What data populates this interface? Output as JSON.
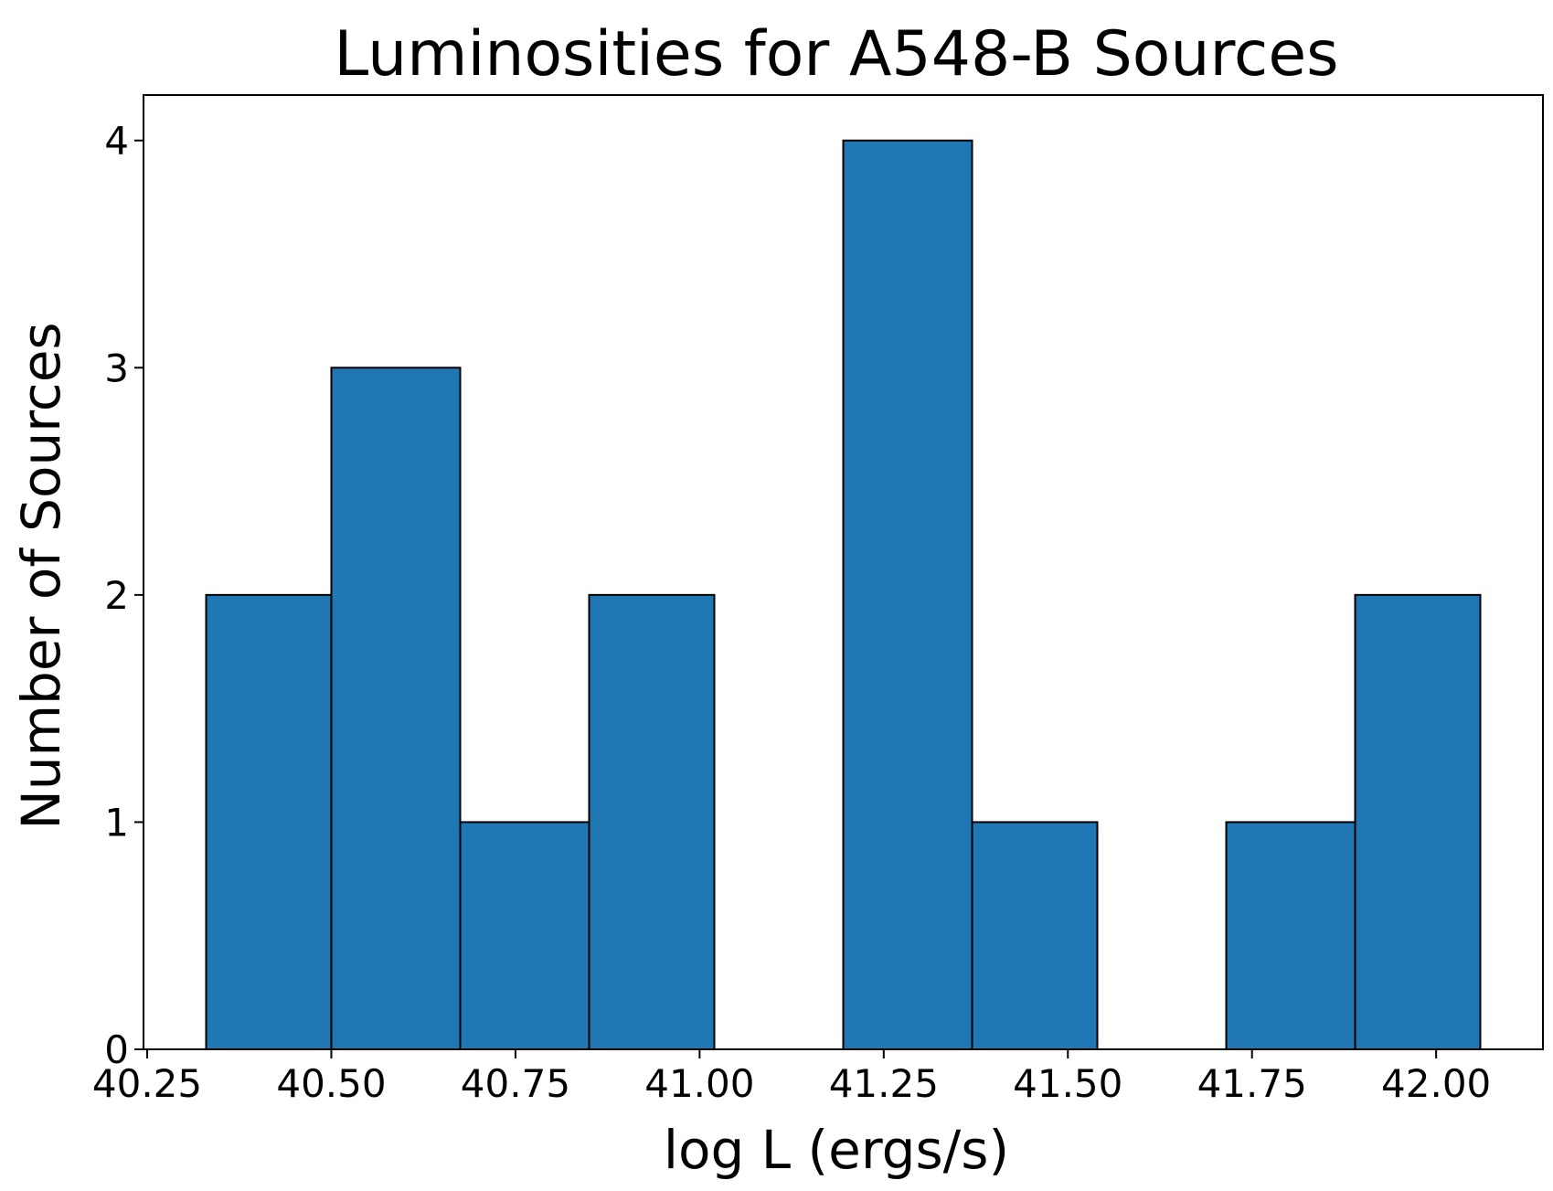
{
  "chart_data": {
    "type": "bar",
    "title": "Luminosities for A548-B Sources",
    "xlabel": "log L (ergs/s)",
    "ylabel": "Number of Sources",
    "xlim": [
      40.245,
      42.145
    ],
    "ylim": [
      0,
      4.2
    ],
    "bins": [
      {
        "x0": 40.33,
        "x1": 40.5,
        "count": 2
      },
      {
        "x0": 40.5,
        "x1": 40.675,
        "count": 3
      },
      {
        "x0": 40.675,
        "x1": 40.85,
        "count": 1
      },
      {
        "x0": 40.85,
        "x1": 41.02,
        "count": 2
      },
      {
        "x0": 41.02,
        "x1": 41.195,
        "count": 0
      },
      {
        "x0": 41.195,
        "x1": 41.37,
        "count": 4
      },
      {
        "x0": 41.37,
        "x1": 41.54,
        "count": 1
      },
      {
        "x0": 41.54,
        "x1": 41.715,
        "count": 0
      },
      {
        "x0": 41.715,
        "x1": 41.89,
        "count": 1
      },
      {
        "x0": 41.89,
        "x1": 42.06,
        "count": 2
      }
    ],
    "xticks": [
      {
        "value": 40.25,
        "label": "40.25"
      },
      {
        "value": 40.5,
        "label": "40.50"
      },
      {
        "value": 40.75,
        "label": "40.75"
      },
      {
        "value": 41.0,
        "label": "41.00"
      },
      {
        "value": 41.25,
        "label": "41.25"
      },
      {
        "value": 41.5,
        "label": "41.50"
      },
      {
        "value": 41.75,
        "label": "41.75"
      },
      {
        "value": 42.0,
        "label": "42.00"
      }
    ],
    "yticks": [
      {
        "value": 0,
        "label": "0"
      },
      {
        "value": 1,
        "label": "1"
      },
      {
        "value": 2,
        "label": "2"
      },
      {
        "value": 3,
        "label": "3"
      },
      {
        "value": 4,
        "label": "4"
      }
    ],
    "bar_color": "#1f77b4",
    "edge_color": "#000000",
    "grid": false,
    "legend": "none"
  }
}
